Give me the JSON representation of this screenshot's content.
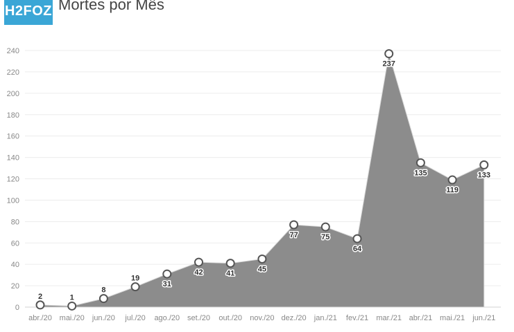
{
  "header": {
    "logo_text": "H2FOZ",
    "title": "Mortes por Mês"
  },
  "colors": {
    "logo_bg": "#3aa6d6",
    "area_fill": "#8c8c8c",
    "marker_fill": "#ffffff",
    "marker_stroke": "#555555",
    "grid": "#ececec"
  },
  "chart_data": {
    "type": "area",
    "title": "Mortes por Mês",
    "categories": [
      "abr./20",
      "mai./20",
      "jun./20",
      "jul./20",
      "ago./20",
      "set./20",
      "out./20",
      "nov./20",
      "dez./20",
      "jan./21",
      "fev./21",
      "mar./21",
      "abr./21",
      "mai./21",
      "jun./21"
    ],
    "values": [
      2,
      1,
      8,
      19,
      31,
      42,
      41,
      45,
      77,
      75,
      64,
      237,
      135,
      119,
      133
    ],
    "ylim": [
      0,
      240
    ],
    "yticks": [
      0,
      20,
      40,
      60,
      80,
      100,
      120,
      140,
      160,
      180,
      200,
      220,
      240
    ],
    "grid": true,
    "data_labels": true
  }
}
